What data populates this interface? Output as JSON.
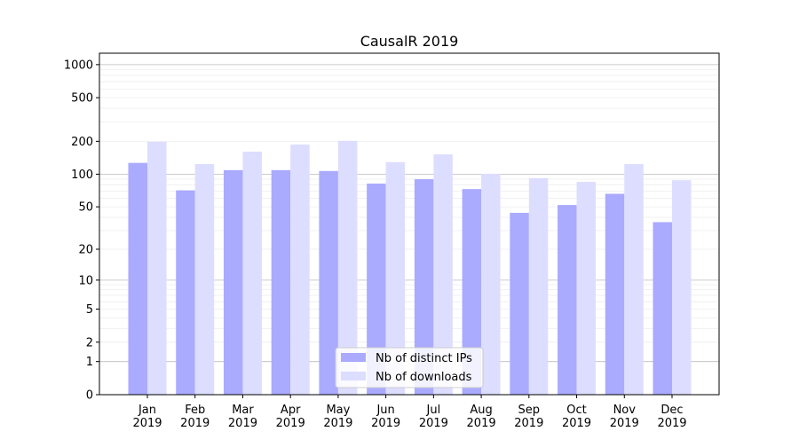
{
  "chart_data": {
    "type": "bar",
    "title": "CausalR 2019",
    "xlabel": "",
    "ylabel": "",
    "yscale": "symlog (log10(1+y))",
    "ylim": [
      0,
      1270
    ],
    "yticks": [
      0,
      1,
      2,
      5,
      10,
      20,
      50,
      100,
      200,
      500,
      1000
    ],
    "grid": true,
    "legend_position": "lower center",
    "categories": [
      "Jan\n2019",
      "Feb\n2019",
      "Mar\n2019",
      "Apr\n2019",
      "May\n2019",
      "Jun\n2019",
      "Jul\n2019",
      "Aug\n2019",
      "Sep\n2019",
      "Oct\n2019",
      "Nov\n2019",
      "Dec\n2019"
    ],
    "series": [
      {
        "name": "Nb of distinct IPs",
        "color": "#aaaaff",
        "values": [
          127,
          71,
          109,
          109,
          107,
          82,
          90,
          73,
          44,
          52,
          66,
          36
        ]
      },
      {
        "name": "Nb of downloads",
        "color": "#ddddff",
        "values": [
          198,
          124,
          161,
          187,
          202,
          129,
          152,
          101,
          92,
          85,
          124,
          88
        ]
      }
    ]
  }
}
